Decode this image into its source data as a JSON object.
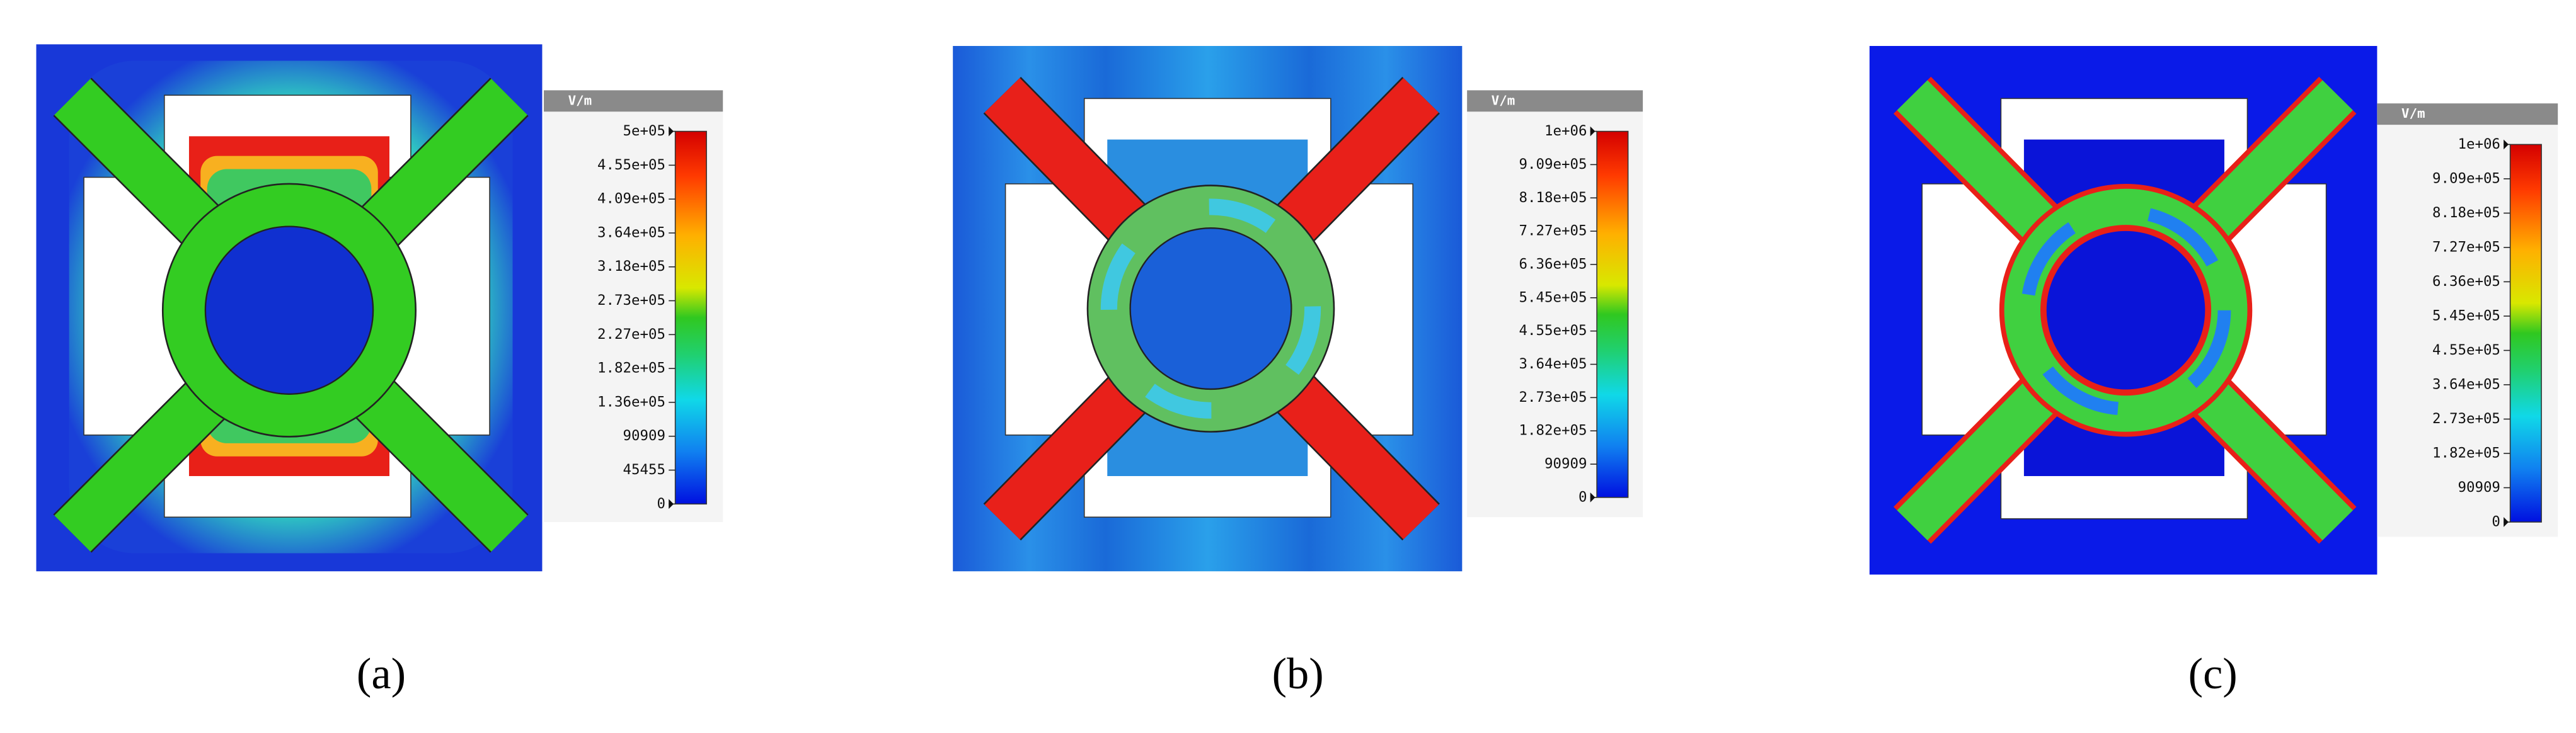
{
  "panels": [
    {
      "label": "(a)",
      "unit": "V/m",
      "colorbar_ticks": [
        "5e+05",
        "4.55e+05",
        "4.09e+05",
        "3.64e+05",
        "3.18e+05",
        "2.73e+05",
        "2.27e+05",
        "1.82e+05",
        "1.36e+05",
        "90909",
        "45455",
        "0"
      ]
    },
    {
      "label": "(b)",
      "unit": "V/m",
      "colorbar_ticks": [
        "1e+06",
        "9.09e+05",
        "8.18e+05",
        "7.27e+05",
        "6.36e+05",
        "5.45e+05",
        "4.55e+05",
        "3.64e+05",
        "2.73e+05",
        "1.82e+05",
        "90909",
        "0"
      ]
    },
    {
      "label": "(c)",
      "unit": "V/m",
      "colorbar_ticks": [
        "1e+06",
        "9.09e+05",
        "8.18e+05",
        "7.27e+05",
        "6.36e+05",
        "5.45e+05",
        "4.55e+05",
        "3.64e+05",
        "2.73e+05",
        "1.82e+05",
        "90909",
        "0"
      ]
    }
  ]
}
